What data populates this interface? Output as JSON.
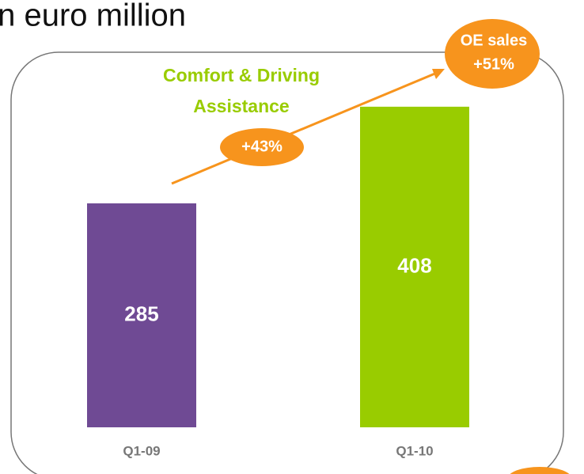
{
  "chart_data": {
    "type": "bar",
    "title": "In euro million",
    "categories": [
      "Q1-09",
      "Q1-10"
    ],
    "values": [
      285,
      408
    ],
    "colors": [
      "#6f4a94",
      "#99cc00"
    ],
    "segment_label": [
      "Comfort & Driving",
      "Assistance"
    ],
    "growth_label": "+43%",
    "oe_label": [
      "OE sales",
      "+51%"
    ]
  }
}
